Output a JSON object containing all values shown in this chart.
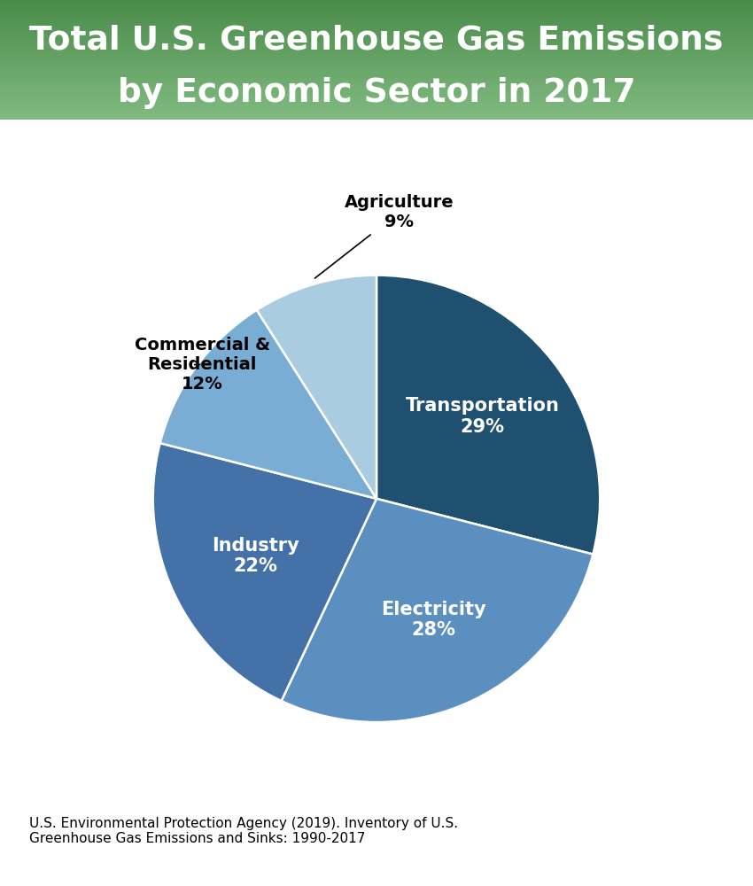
{
  "title_line1": "Total U.S. Greenhouse Gas Emissions",
  "title_line2": "by Economic Sector in 2017",
  "title_bg_color_top": "#4a8f4a",
  "title_bg_color_bottom": "#82bb82",
  "title_text_color": "#ffffff",
  "background_color": "#ffffff",
  "sectors": [
    "Transportation",
    "Electricity",
    "Industry",
    "Commercial & Residential",
    "Agriculture"
  ],
  "values": [
    29,
    28,
    22,
    12,
    9
  ],
  "colors": [
    "#1f5070",
    "#5b8fbf",
    "#4472a8",
    "#7aadd4",
    "#aacce0"
  ],
  "citation": "U.S. Environmental Protection Agency (2019). Inventory of U.S.\nGreenhouse Gas Emissions and Sinks: 1990-2017",
  "citation_fontsize": 11
}
